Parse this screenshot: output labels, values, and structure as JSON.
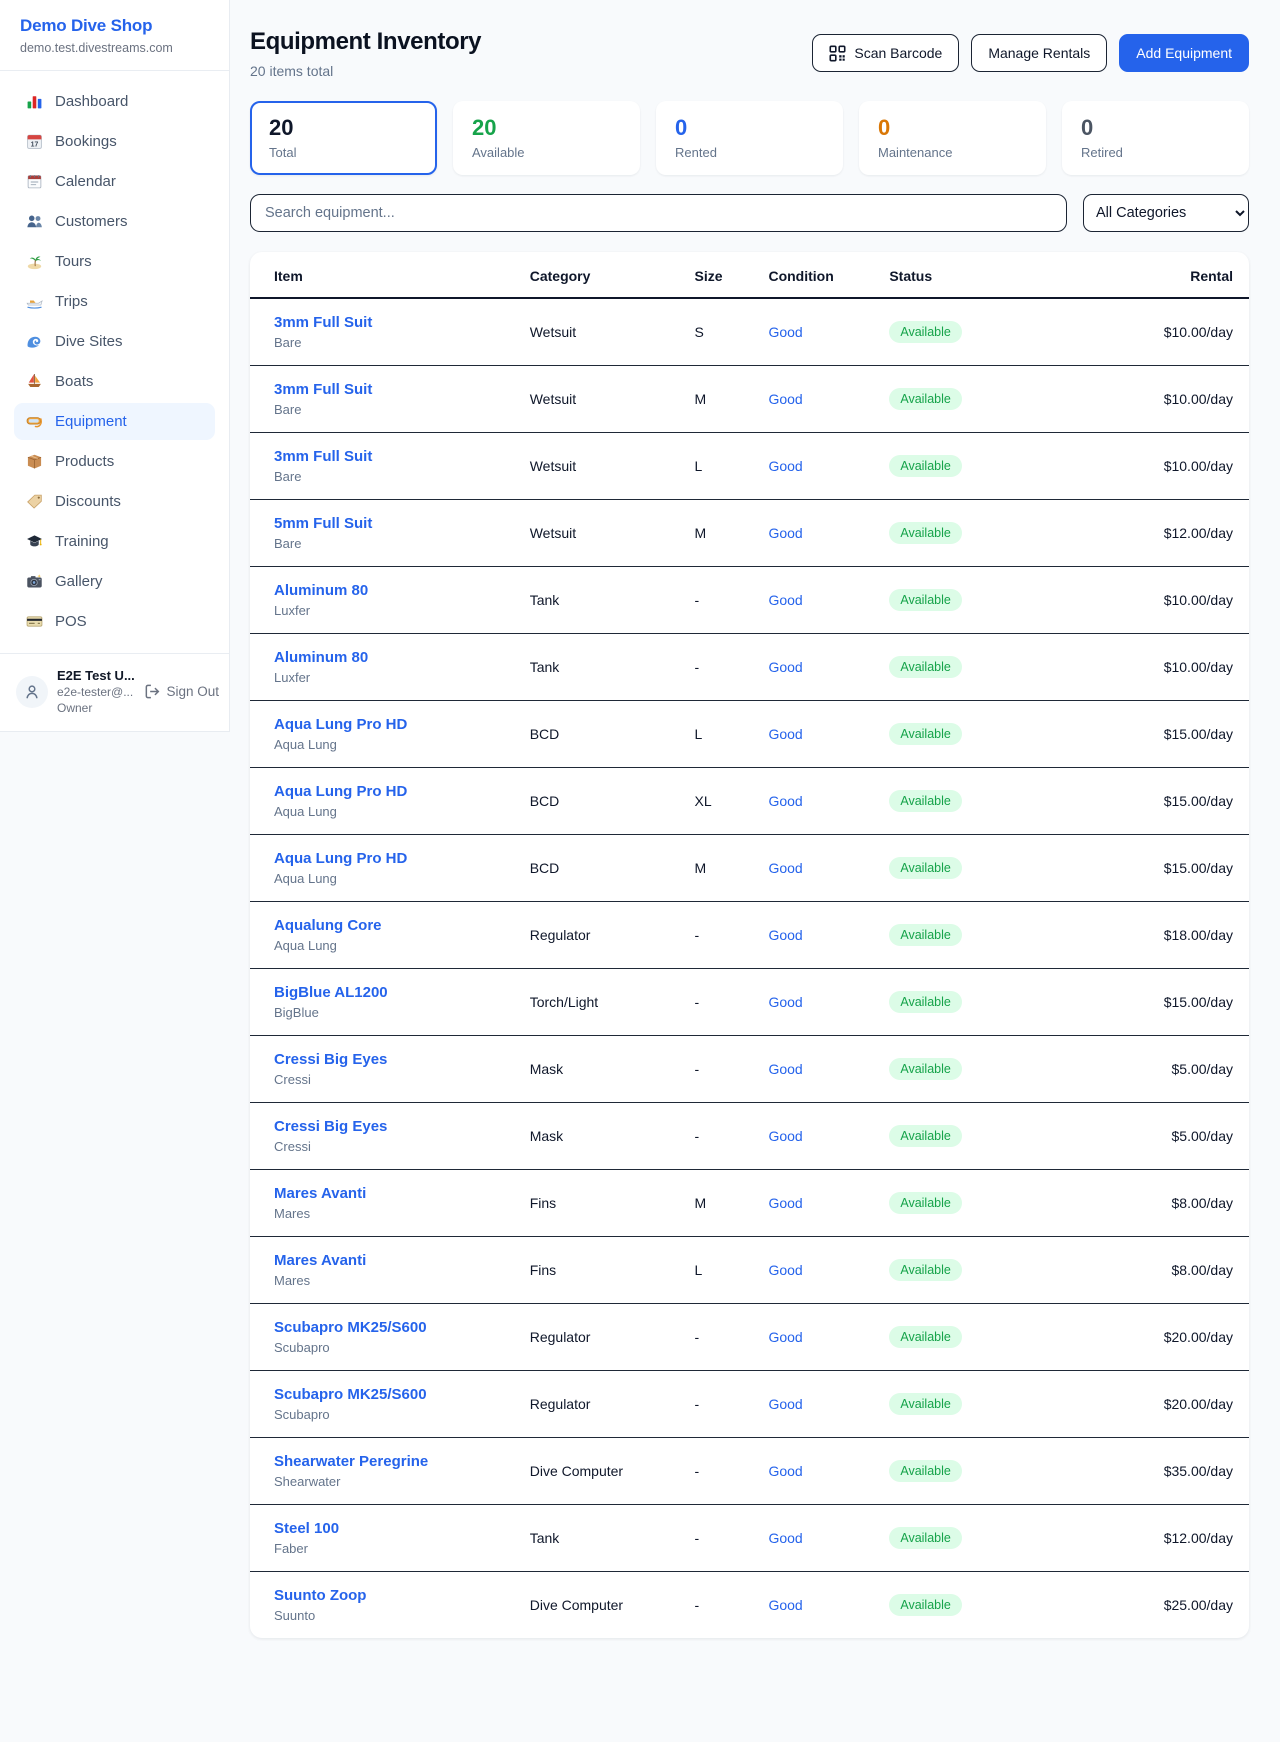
{
  "sidebar": {
    "title": "Demo Dive Shop",
    "subtitle": "demo.test.divestreams.com",
    "items": [
      {
        "name": "sidebar-item-dashboard",
        "icon": "bar-chart-icon",
        "label": "Dashboard",
        "active": false
      },
      {
        "name": "sidebar-item-bookings",
        "icon": "calendar-date-icon",
        "label": "Bookings",
        "active": false
      },
      {
        "name": "sidebar-item-calendar",
        "icon": "calendar-pad-icon",
        "label": "Calendar",
        "active": false
      },
      {
        "name": "sidebar-item-customers",
        "icon": "people-icon",
        "label": "Customers",
        "active": false
      },
      {
        "name": "sidebar-item-tours",
        "icon": "island-icon",
        "label": "Tours",
        "active": false
      },
      {
        "name": "sidebar-item-trips",
        "icon": "speedboat-icon",
        "label": "Trips",
        "active": false
      },
      {
        "name": "sidebar-item-dive-sites",
        "icon": "wave-icon",
        "label": "Dive Sites",
        "active": false
      },
      {
        "name": "sidebar-item-boats",
        "icon": "sailboat-icon",
        "label": "Boats",
        "active": false
      },
      {
        "name": "sidebar-item-equipment",
        "icon": "dive-mask-icon",
        "label": "Equipment",
        "active": true
      },
      {
        "name": "sidebar-item-products",
        "icon": "package-icon",
        "label": "Products",
        "active": false
      },
      {
        "name": "sidebar-item-discounts",
        "icon": "tag-icon",
        "label": "Discounts",
        "active": false
      },
      {
        "name": "sidebar-item-training",
        "icon": "grad-cap-icon",
        "label": "Training",
        "active": false
      },
      {
        "name": "sidebar-item-gallery",
        "icon": "camera-icon",
        "label": "Gallery",
        "active": false
      },
      {
        "name": "sidebar-item-pos",
        "icon": "credit-card-icon",
        "label": "POS",
        "active": false
      }
    ],
    "user": {
      "name": "E2E Test U...",
      "email": "e2e-tester@...",
      "role": "Owner",
      "sign_out_label": "Sign Out"
    }
  },
  "header": {
    "title": "Equipment Inventory",
    "subtitle": "20 items total",
    "scan_barcode_label": "Scan Barcode",
    "manage_rentals_label": "Manage Rentals",
    "add_equipment_label": "Add Equipment"
  },
  "stats": [
    {
      "value": "20",
      "label": "Total",
      "color": "#0f172a",
      "active": true
    },
    {
      "value": "20",
      "label": "Available",
      "color": "#16a34a",
      "active": false
    },
    {
      "value": "0",
      "label": "Rented",
      "color": "#2563eb",
      "active": false
    },
    {
      "value": "0",
      "label": "Maintenance",
      "color": "#d97706",
      "active": false
    },
    {
      "value": "0",
      "label": "Retired",
      "color": "#4b5563",
      "active": false
    }
  ],
  "filters": {
    "search_placeholder": "Search equipment...",
    "category_selected": "All Categories"
  },
  "table": {
    "columns": [
      "Item",
      "Category",
      "Size",
      "Condition",
      "Status",
      "Rental"
    ],
    "rows": [
      {
        "name": "3mm Full Suit",
        "brand": "Bare",
        "category": "Wetsuit",
        "size": "S",
        "condition": "Good",
        "status": "Available",
        "rental": "$10.00/day"
      },
      {
        "name": "3mm Full Suit",
        "brand": "Bare",
        "category": "Wetsuit",
        "size": "M",
        "condition": "Good",
        "status": "Available",
        "rental": "$10.00/day"
      },
      {
        "name": "3mm Full Suit",
        "brand": "Bare",
        "category": "Wetsuit",
        "size": "L",
        "condition": "Good",
        "status": "Available",
        "rental": "$10.00/day"
      },
      {
        "name": "5mm Full Suit",
        "brand": "Bare",
        "category": "Wetsuit",
        "size": "M",
        "condition": "Good",
        "status": "Available",
        "rental": "$12.00/day"
      },
      {
        "name": "Aluminum 80",
        "brand": "Luxfer",
        "category": "Tank",
        "size": "-",
        "condition": "Good",
        "status": "Available",
        "rental": "$10.00/day"
      },
      {
        "name": "Aluminum 80",
        "brand": "Luxfer",
        "category": "Tank",
        "size": "-",
        "condition": "Good",
        "status": "Available",
        "rental": "$10.00/day"
      },
      {
        "name": "Aqua Lung Pro HD",
        "brand": "Aqua Lung",
        "category": "BCD",
        "size": "L",
        "condition": "Good",
        "status": "Available",
        "rental": "$15.00/day"
      },
      {
        "name": "Aqua Lung Pro HD",
        "brand": "Aqua Lung",
        "category": "BCD",
        "size": "XL",
        "condition": "Good",
        "status": "Available",
        "rental": "$15.00/day"
      },
      {
        "name": "Aqua Lung Pro HD",
        "brand": "Aqua Lung",
        "category": "BCD",
        "size": "M",
        "condition": "Good",
        "status": "Available",
        "rental": "$15.00/day"
      },
      {
        "name": "Aqualung Core",
        "brand": "Aqua Lung",
        "category": "Regulator",
        "size": "-",
        "condition": "Good",
        "status": "Available",
        "rental": "$18.00/day"
      },
      {
        "name": "BigBlue AL1200",
        "brand": "BigBlue",
        "category": "Torch/Light",
        "size": "-",
        "condition": "Good",
        "status": "Available",
        "rental": "$15.00/day"
      },
      {
        "name": "Cressi Big Eyes",
        "brand": "Cressi",
        "category": "Mask",
        "size": "-",
        "condition": "Good",
        "status": "Available",
        "rental": "$5.00/day"
      },
      {
        "name": "Cressi Big Eyes",
        "brand": "Cressi",
        "category": "Mask",
        "size": "-",
        "condition": "Good",
        "status": "Available",
        "rental": "$5.00/day"
      },
      {
        "name": "Mares Avanti",
        "brand": "Mares",
        "category": "Fins",
        "size": "M",
        "condition": "Good",
        "status": "Available",
        "rental": "$8.00/day"
      },
      {
        "name": "Mares Avanti",
        "brand": "Mares",
        "category": "Fins",
        "size": "L",
        "condition": "Good",
        "status": "Available",
        "rental": "$8.00/day"
      },
      {
        "name": "Scubapro MK25/S600",
        "brand": "Scubapro",
        "category": "Regulator",
        "size": "-",
        "condition": "Good",
        "status": "Available",
        "rental": "$20.00/day"
      },
      {
        "name": "Scubapro MK25/S600",
        "brand": "Scubapro",
        "category": "Regulator",
        "size": "-",
        "condition": "Good",
        "status": "Available",
        "rental": "$20.00/day"
      },
      {
        "name": "Shearwater Peregrine",
        "brand": "Shearwater",
        "category": "Dive Computer",
        "size": "-",
        "condition": "Good",
        "status": "Available",
        "rental": "$35.00/day"
      },
      {
        "name": "Steel 100",
        "brand": "Faber",
        "category": "Tank",
        "size": "-",
        "condition": "Good",
        "status": "Available",
        "rental": "$12.00/day"
      },
      {
        "name": "Suunto Zoop",
        "brand": "Suunto",
        "category": "Dive Computer",
        "size": "-",
        "condition": "Good",
        "status": "Available",
        "rental": "$25.00/day"
      }
    ]
  },
  "colors": {
    "accent": "#2563eb",
    "sidebar_active_bg": "#eff6ff",
    "status_available_text": "#16a34a",
    "status_available_bg": "#dcfce7",
    "maintenance": "#d97706",
    "page_bg": "#f8fafc",
    "dark_border": "#1f2937"
  }
}
